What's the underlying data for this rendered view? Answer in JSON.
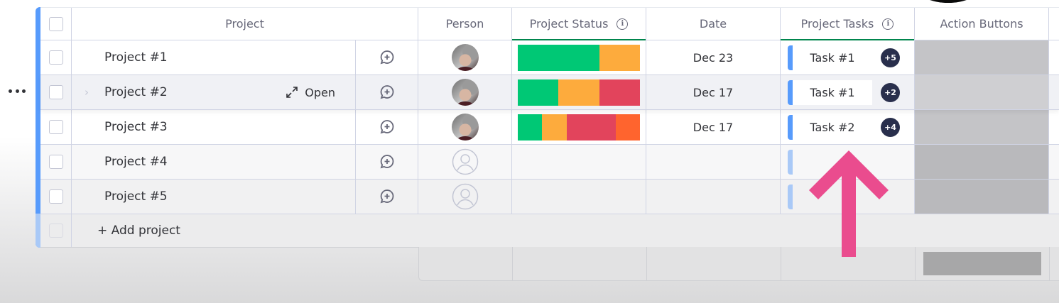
{
  "board": {
    "group_color": "#579bfc",
    "more_menu_icon": "more-horizontal-icon",
    "columns": [
      {
        "key": "name",
        "label": "Project"
      },
      {
        "key": "person",
        "label": "Person"
      },
      {
        "key": "status",
        "label": "Project Status",
        "has_info": true,
        "active": true
      },
      {
        "key": "date",
        "label": "Date"
      },
      {
        "key": "tasks",
        "label": "Project Tasks",
        "has_info": true,
        "active": true
      },
      {
        "key": "actions",
        "label": "Action Buttons"
      }
    ],
    "rows": [
      {
        "name": "Project #1",
        "person": "avatar-photo",
        "status_segments": [
          {
            "color": "#00c875",
            "weight": 2
          },
          {
            "color": "#fdab3d",
            "weight": 1
          }
        ],
        "date": "Dec 23",
        "task": "Task #1",
        "task_badge": "+5"
      },
      {
        "name": "Project #2",
        "hovered": true,
        "open_label": "Open",
        "person": "avatar-photo",
        "status_segments": [
          {
            "color": "#00c875",
            "weight": 1
          },
          {
            "color": "#fdab3d",
            "weight": 1
          },
          {
            "color": "#e2445c",
            "weight": 1
          }
        ],
        "date": "Dec 17",
        "task": "Task #1",
        "task_badge": "+2"
      },
      {
        "name": "Project #3",
        "person": "avatar-photo",
        "status_segments": [
          {
            "color": "#00c875",
            "weight": 1
          },
          {
            "color": "#fdab3d",
            "weight": 1
          },
          {
            "color": "#e2445c",
            "weight": 2
          },
          {
            "color": "#ff642e",
            "weight": 1
          }
        ],
        "date": "Dec 17",
        "task": "Task #2",
        "task_badge": "+4"
      },
      {
        "name": "Project #4",
        "person": "empty",
        "status_segments": [],
        "date": "",
        "task": "",
        "task_badge": ""
      },
      {
        "name": "Project #5",
        "person": "empty",
        "status_segments": [],
        "date": "",
        "task": "",
        "task_badge": ""
      }
    ],
    "add_row_label": "+ Add project"
  },
  "annotation": {
    "type": "arrow-up",
    "color": "#ea4c8e"
  },
  "colors": {
    "active_column_underline": "#00854d",
    "task_badge_bg": "#292f4c",
    "action_buttons_bg": "#c4c4c7"
  }
}
